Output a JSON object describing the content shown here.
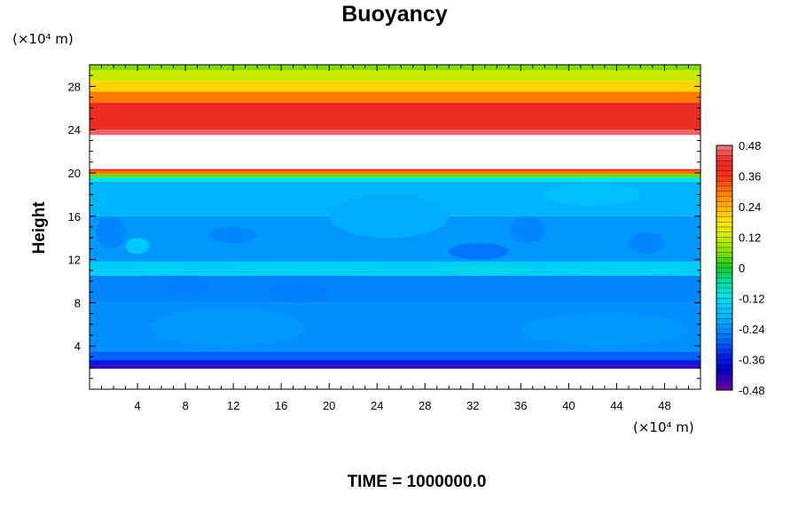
{
  "chart_data": {
    "type": "heatmap",
    "title": "Buoyancy",
    "xlabel": "",
    "ylabel": "Height",
    "x_unit": "(×10⁴ m)",
    "y_unit": "(×10⁴ m)",
    "xlim": [
      0,
      51
    ],
    "ylim": [
      0,
      30
    ],
    "x_ticks": [
      4,
      8,
      12,
      16,
      20,
      24,
      28,
      32,
      36,
      40,
      44,
      48
    ],
    "y_ticks": [
      4,
      8,
      12,
      16,
      20,
      24,
      28
    ],
    "footer": "TIME = 1000000.0",
    "colorbar": {
      "min": -0.48,
      "max": 0.48,
      "step": 0.02,
      "tick_labels": [
        "0.48",
        "0.36",
        "0.24",
        "0.12",
        "0",
        "-0.12",
        "-0.24",
        "-0.36",
        "-0.48"
      ],
      "tick_values": [
        0.48,
        0.36,
        0.24,
        0.12,
        0,
        -0.12,
        -0.24,
        -0.36,
        -0.48
      ]
    },
    "bands": [
      {
        "y": [
          0.0,
          1.9
        ],
        "value": null
      },
      {
        "y": [
          1.9,
          2.2
        ],
        "value": -0.44
      },
      {
        "y": [
          2.2,
          2.7
        ],
        "value": -0.36
      },
      {
        "y": [
          2.7,
          3.5
        ],
        "value": -0.29
      },
      {
        "y": [
          3.5,
          8.0
        ],
        "value": -0.24
      },
      {
        "y": [
          8.0,
          10.5
        ],
        "value": -0.25
      },
      {
        "y": [
          10.5,
          11.8
        ],
        "value": -0.15
      },
      {
        "y": [
          11.8,
          16.0
        ],
        "value": -0.23
      },
      {
        "y": [
          16.0,
          19.2
        ],
        "value": -0.19
      },
      {
        "y": [
          19.2,
          19.6
        ],
        "value": -0.1
      },
      {
        "y": [
          19.6,
          19.9
        ],
        "value": 0.05
      },
      {
        "y": [
          19.9,
          20.2
        ],
        "value": 0.3
      },
      {
        "y": [
          20.2,
          20.35
        ],
        "value": 0.42
      },
      {
        "y": [
          20.35,
          23.5
        ],
        "value": null
      },
      {
        "y": [
          23.5,
          24.0
        ],
        "value": 0.46
      },
      {
        "y": [
          24.0,
          26.5
        ],
        "value": 0.4
      },
      {
        "y": [
          26.5,
          27.5
        ],
        "value": 0.3
      },
      {
        "y": [
          27.5,
          28.5
        ],
        "value": 0.2
      },
      {
        "y": [
          28.5,
          29.5
        ],
        "value": 0.12
      },
      {
        "y": [
          29.5,
          30.0
        ],
        "value": 0.06
      }
    ],
    "patches": [
      {
        "x": [
          29.0,
          37.0
        ],
        "y": [
          10.7,
          11.6
        ],
        "value": -0.13
      },
      {
        "x": [
          38.0,
          50.0
        ],
        "y": [
          10.6,
          11.6
        ],
        "value": -0.14
      },
      {
        "x": [
          4.0,
          8.0
        ],
        "y": [
          10.7,
          11.5
        ],
        "value": -0.14
      },
      {
        "x": [
          12.0,
          24.0
        ],
        "y": [
          10.8,
          11.6
        ],
        "value": -0.14
      },
      {
        "x": [
          3.0,
          5.0
        ],
        "y": [
          12.5,
          14.0
        ],
        "value": -0.16
      },
      {
        "x": [
          6.0,
          10.0
        ],
        "y": [
          8.5,
          10.5
        ],
        "value": -0.26
      },
      {
        "x": [
          15.0,
          20.0
        ],
        "y": [
          8.0,
          10.0
        ],
        "value": -0.26
      },
      {
        "x": [
          30.0,
          35.0
        ],
        "y": [
          12.0,
          13.5
        ],
        "value": -0.27
      },
      {
        "x": [
          10.0,
          14.0
        ],
        "y": [
          13.5,
          15.0
        ],
        "value": -0.25
      },
      {
        "x": [
          0.5,
          3.0
        ],
        "y": [
          13.0,
          16.0
        ],
        "value": -0.25
      },
      {
        "x": [
          35.0,
          38.0
        ],
        "y": [
          13.5,
          16.0
        ],
        "value": -0.25
      },
      {
        "x": [
          45.0,
          48.0
        ],
        "y": [
          12.5,
          14.5
        ],
        "value": -0.25
      },
      {
        "x": [
          20.0,
          30.0
        ],
        "y": [
          14.0,
          18.0
        ],
        "value": -0.2
      },
      {
        "x": [
          38.0,
          46.0
        ],
        "y": [
          17.0,
          19.0
        ],
        "value": -0.17
      },
      {
        "x": [
          5.0,
          18.0
        ],
        "y": [
          4.0,
          7.5
        ],
        "value": -0.23
      },
      {
        "x": [
          36.0,
          50.0
        ],
        "y": [
          4.0,
          7.0
        ],
        "value": -0.23
      }
    ]
  }
}
